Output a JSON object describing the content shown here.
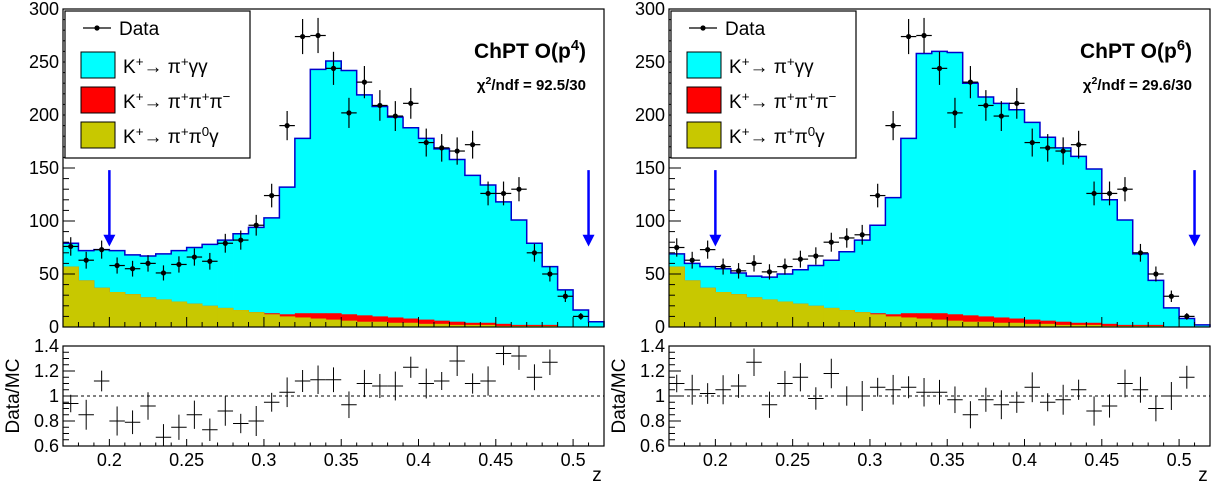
{
  "chart_data": [
    {
      "type": "histogram",
      "title": "ChPT O(p⁴)",
      "fit_label": "χ²/ndf = 92.5/30",
      "xlabel": "z",
      "ylabel": "",
      "ratio_ylabel": "Data/MC",
      "xlim": [
        0.17,
        0.52
      ],
      "ylim": [
        0,
        300
      ],
      "ratio_ylim": [
        0.6,
        1.4
      ],
      "x_ticks": [
        "0.2",
        "0.25",
        "0.3",
        "0.35",
        "0.4",
        "0.45",
        "0.5"
      ],
      "y_ticks": [
        "0",
        "50",
        "100",
        "150",
        "200",
        "250",
        "300"
      ],
      "ratio_ticks": [
        "0.6",
        "0.8",
        "1",
        "1.2",
        "1.4"
      ],
      "cut_arrows": [
        0.2,
        0.51
      ],
      "bin_edges": [
        0.17,
        0.18,
        0.19,
        0.2,
        0.21,
        0.22,
        0.23,
        0.24,
        0.25,
        0.26,
        0.27,
        0.28,
        0.29,
        0.3,
        0.31,
        0.32,
        0.33,
        0.34,
        0.35,
        0.36,
        0.37,
        0.38,
        0.39,
        0.4,
        0.41,
        0.42,
        0.43,
        0.44,
        0.45,
        0.46,
        0.47,
        0.48,
        0.49,
        0.5,
        0.51,
        0.52
      ],
      "series": [
        {
          "name": "K⁺→ π⁺π⁰γ",
          "color": "#c8c800",
          "values": [
            57,
            44,
            37,
            33,
            31,
            28,
            26,
            24,
            22,
            20,
            18,
            16,
            14,
            12,
            10,
            9,
            8,
            7,
            6,
            5,
            5,
            4,
            4,
            3,
            3,
            2,
            2,
            2,
            1,
            1,
            1,
            1,
            0,
            0,
            0
          ]
        },
        {
          "name": "K⁺→ π⁺π⁺π⁻",
          "color": "#ff0000",
          "values": [
            0,
            0,
            0,
            0,
            0,
            0,
            0,
            0,
            0,
            0,
            0,
            0,
            0,
            1,
            2,
            4,
            5,
            6,
            6,
            6,
            5,
            5,
            4,
            4,
            3,
            3,
            2,
            2,
            2,
            1,
            1,
            1,
            0,
            0,
            0
          ]
        },
        {
          "name": "K⁺→ π⁺γγ",
          "color": "#00ffff",
          "values": [
            22,
            28,
            36,
            39,
            37,
            39,
            43,
            48,
            53,
            58,
            64,
            72,
            80,
            90,
            120,
            165,
            230,
            238,
            230,
            208,
            198,
            189,
            180,
            171,
            162,
            153,
            139,
            130,
            115,
            99,
            77,
            55,
            35,
            16,
            5
          ]
        },
        {
          "name": "Data",
          "color": "#000000",
          "x": [
            0.175,
            0.185,
            0.195,
            0.205,
            0.215,
            0.225,
            0.235,
            0.245,
            0.255,
            0.265,
            0.275,
            0.285,
            0.295,
            0.305,
            0.315,
            0.325,
            0.335,
            0.345,
            0.355,
            0.365,
            0.375,
            0.385,
            0.395,
            0.405,
            0.415,
            0.425,
            0.435,
            0.445,
            0.455,
            0.465,
            0.475,
            0.485,
            0.495,
            0.505
          ],
          "values": [
            76,
            63,
            73,
            58,
            55,
            60,
            51,
            59,
            66,
            62,
            79,
            82,
            96,
            124,
            190,
            274,
            275,
            244,
            202,
            231,
            209,
            199,
            211,
            174,
            169,
            166,
            172,
            126,
            126,
            130,
            70,
            50,
            29,
            10
          ]
        }
      ],
      "ratio": {
        "x": [
          0.175,
          0.185,
          0.195,
          0.205,
          0.215,
          0.225,
          0.235,
          0.245,
          0.255,
          0.265,
          0.275,
          0.285,
          0.295,
          0.305,
          0.315,
          0.325,
          0.335,
          0.345,
          0.355,
          0.365,
          0.375,
          0.385,
          0.395,
          0.405,
          0.415,
          0.425,
          0.435,
          0.445,
          0.455,
          0.465,
          0.475,
          0.485
        ],
        "values": [
          0.94,
          0.85,
          1.12,
          0.8,
          0.79,
          0.92,
          0.67,
          0.75,
          0.85,
          0.73,
          0.88,
          0.78,
          0.8,
          0.95,
          1.03,
          1.12,
          1.13,
          1.13,
          0.93,
          1.1,
          1.08,
          1.08,
          1.23,
          1.1,
          1.12,
          1.28,
          1.1,
          1.12,
          1.34,
          1.32,
          1.15,
          1.27
        ]
      }
    },
    {
      "type": "histogram",
      "title": "ChPT O(p⁶)",
      "fit_label": "χ²/ndf = 29.6/30",
      "xlabel": "z",
      "ylabel": "",
      "ratio_ylabel": "Data/MC",
      "xlim": [
        0.17,
        0.52
      ],
      "ylim": [
        0,
        300
      ],
      "ratio_ylim": [
        0.6,
        1.4
      ],
      "x_ticks": [
        "0.2",
        "0.25",
        "0.3",
        "0.35",
        "0.4",
        "0.45",
        "0.5"
      ],
      "y_ticks": [
        "0",
        "50",
        "100",
        "150",
        "200",
        "250",
        "300"
      ],
      "ratio_ticks": [
        "0.6",
        "0.8",
        "1",
        "1.2",
        "1.4"
      ],
      "cut_arrows": [
        0.2,
        0.51
      ],
      "bin_edges": [
        0.17,
        0.18,
        0.19,
        0.2,
        0.21,
        0.22,
        0.23,
        0.24,
        0.25,
        0.26,
        0.27,
        0.28,
        0.29,
        0.3,
        0.31,
        0.32,
        0.33,
        0.34,
        0.35,
        0.36,
        0.37,
        0.38,
        0.39,
        0.4,
        0.41,
        0.42,
        0.43,
        0.44,
        0.45,
        0.46,
        0.47,
        0.48,
        0.49,
        0.5,
        0.51,
        0.52
      ],
      "series": [
        {
          "name": "K⁺→ π⁺π⁰γ",
          "color": "#c8c800",
          "values": [
            57,
            44,
            37,
            33,
            31,
            28,
            26,
            24,
            22,
            20,
            18,
            16,
            14,
            12,
            10,
            9,
            8,
            7,
            6,
            5,
            5,
            4,
            4,
            3,
            3,
            2,
            2,
            2,
            1,
            1,
            1,
            1,
            0,
            0,
            0
          ]
        },
        {
          "name": "K⁺→ π⁺π⁺π⁻",
          "color": "#ff0000",
          "values": [
            0,
            0,
            0,
            0,
            0,
            0,
            0,
            0,
            0,
            0,
            0,
            0,
            0,
            1,
            2,
            4,
            5,
            6,
            6,
            6,
            5,
            5,
            4,
            4,
            3,
            3,
            2,
            2,
            2,
            1,
            1,
            1,
            0,
            0,
            0
          ]
        },
        {
          "name": "K⁺→ π⁺γγ",
          "color": "#00ffff",
          "values": [
            12,
            16,
            20,
            22,
            20,
            20,
            21,
            26,
            32,
            38,
            45,
            55,
            68,
            83,
            110,
            165,
            245,
            247,
            247,
            219,
            207,
            202,
            197,
            186,
            173,
            164,
            157,
            145,
            117,
            99,
            67,
            42,
            18,
            8,
            2
          ]
        },
        {
          "name": "Data",
          "color": "#000000",
          "x": [
            0.175,
            0.185,
            0.195,
            0.205,
            0.215,
            0.225,
            0.235,
            0.245,
            0.255,
            0.265,
            0.275,
            0.285,
            0.295,
            0.305,
            0.315,
            0.325,
            0.335,
            0.345,
            0.355,
            0.365,
            0.375,
            0.385,
            0.395,
            0.405,
            0.415,
            0.425,
            0.435,
            0.445,
            0.455,
            0.465,
            0.475,
            0.485,
            0.495,
            0.505
          ],
          "values": [
            75,
            63,
            73,
            57,
            53,
            60,
            52,
            57,
            64,
            67,
            80,
            84,
            87,
            124,
            190,
            274,
            275,
            244,
            202,
            231,
            209,
            199,
            211,
            174,
            169,
            166,
            172,
            126,
            126,
            130,
            70,
            50,
            29,
            10
          ]
        }
      ],
      "ratio": {
        "x": [
          0.175,
          0.185,
          0.195,
          0.205,
          0.215,
          0.225,
          0.235,
          0.245,
          0.255,
          0.265,
          0.275,
          0.285,
          0.295,
          0.305,
          0.315,
          0.325,
          0.335,
          0.345,
          0.355,
          0.365,
          0.375,
          0.385,
          0.395,
          0.405,
          0.415,
          0.425,
          0.435,
          0.445,
          0.455,
          0.465,
          0.475,
          0.485,
          0.495,
          0.505
        ],
        "values": [
          1.1,
          1.05,
          1.02,
          1.05,
          1.08,
          1.27,
          0.93,
          1.1,
          1.15,
          0.98,
          1.18,
          1.0,
          1.0,
          1.07,
          1.05,
          1.07,
          1.03,
          1.03,
          0.97,
          0.85,
          0.97,
          0.93,
          0.95,
          1.07,
          0.95,
          0.97,
          1.05,
          0.88,
          0.92,
          1.1,
          1.05,
          0.9,
          1.0,
          1.15
        ]
      }
    }
  ]
}
